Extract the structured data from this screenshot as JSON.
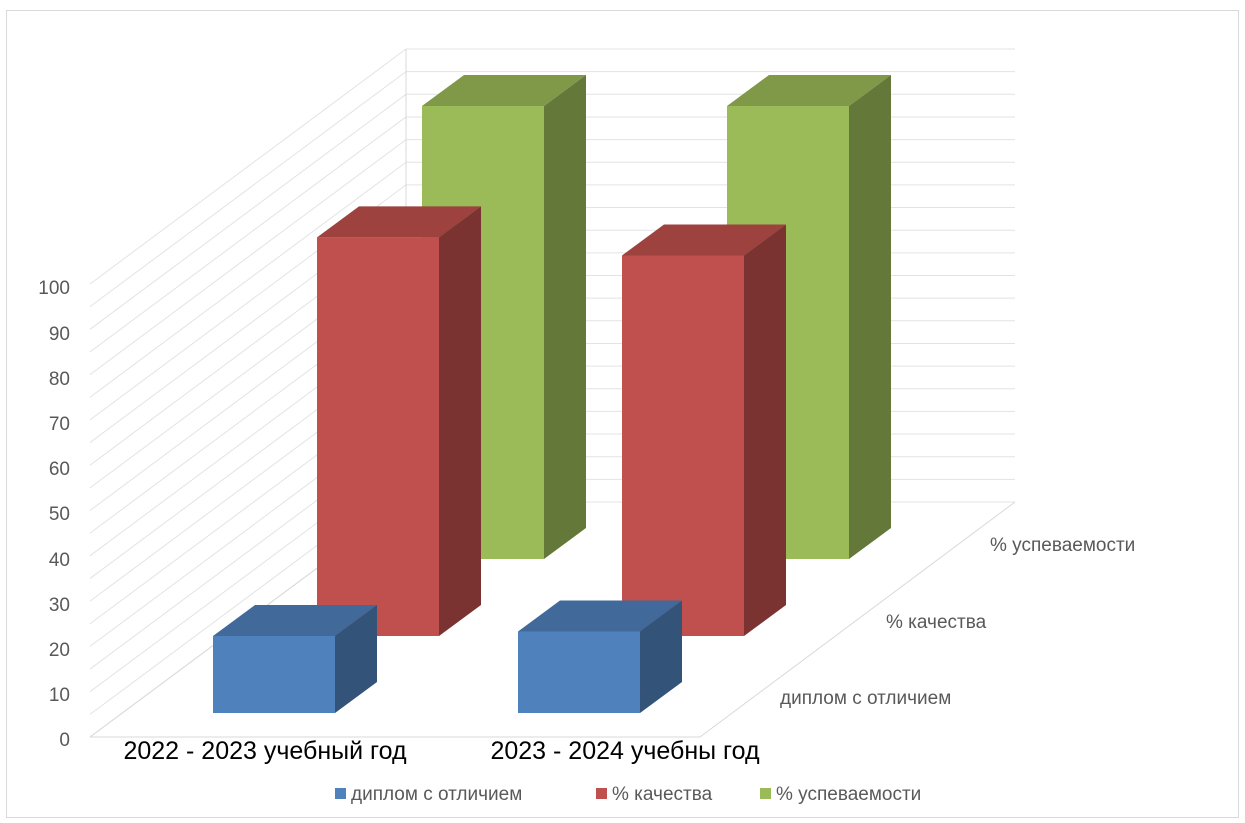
{
  "chart_data": {
    "type": "bar",
    "subtype": "3d-column",
    "categories": [
      "2022 - 2023 учебный год",
      "2023 - 2024 учебны год"
    ],
    "series": [
      {
        "name": "диплом с отличием",
        "values": [
          17,
          18
        ],
        "color": "#4f81bd"
      },
      {
        "name": "% качества",
        "values": [
          88,
          84
        ],
        "color": "#c0504d"
      },
      {
        "name": "% успеваемости",
        "values": [
          100,
          100
        ],
        "color": "#9bbb59"
      }
    ],
    "y_ticks": [
      "0",
      "10",
      "20",
      "30",
      "40",
      "50",
      "60",
      "70",
      "80",
      "90",
      "100"
    ],
    "ylim": [
      0,
      100
    ],
    "depth_labels": [
      "диплом с отличием",
      "% качества",
      "% успеваемости"
    ],
    "grid": true,
    "legend_position": "bottom"
  }
}
